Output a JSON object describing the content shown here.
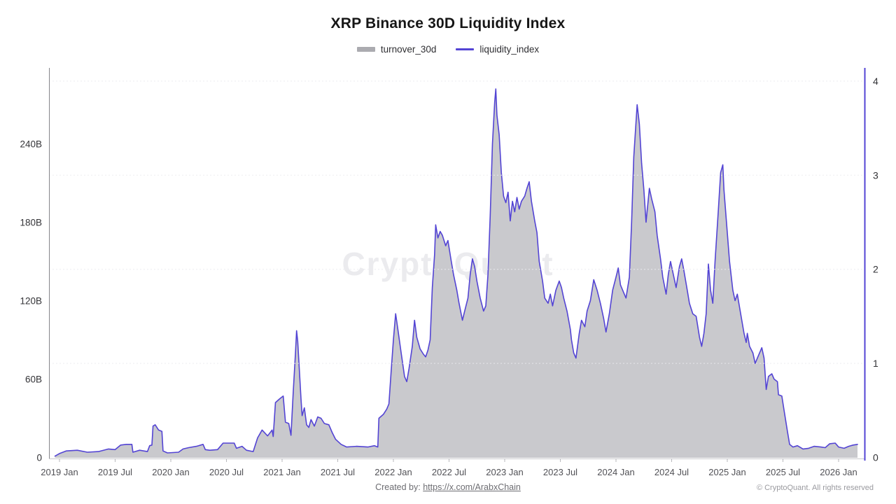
{
  "title": "XRP Binance 30D Liquidity Index",
  "watermark": "CryptoQuant",
  "legend": [
    {
      "label": "turnover_30d",
      "type": "area",
      "color": "#ababb0"
    },
    {
      "label": "liquidity_index",
      "type": "line",
      "color": "#5344d4"
    }
  ],
  "footer": {
    "created_by_label": "Created by:",
    "link": "https://x.com/ArabxChain",
    "copyright": "© CryptoQuant. All rights reserved"
  },
  "colors": {
    "area_fill": "#c9c9cd",
    "line": "#5344d4",
    "right_axis_line": "#5344d4",
    "left_axis_line": "#85858a",
    "bottom_axis_line": "#c9c9cd",
    "grid": "#ececef",
    "tick_text": "#333337",
    "x_label_text": "#515156"
  },
  "chart_data": {
    "type": "area",
    "title": "XRP Binance 30D Liquidity Index",
    "grid": "horizontal-dotted-at-right-axis-integers",
    "legend_position": "top-center",
    "x_axis": {
      "labels": [
        "2019 Jan",
        "2019 Jul",
        "2020 Jan",
        "2020 Jul",
        "2021 Jan",
        "2021 Jul",
        "2022 Jan",
        "2022 Jul",
        "2023 Jan",
        "2023 Jul",
        "2024 Jan",
        "2024 Jul",
        "2025 Jan",
        "2025 Jul",
        "2026 Jan"
      ],
      "start_year": 2019,
      "tick_interval_months": 6
    },
    "left_axis": {
      "unit": "B",
      "ticks": [
        "0",
        "60B",
        "120B",
        "180B",
        "240B"
      ],
      "tick_values": [
        0,
        60,
        120,
        180,
        240
      ],
      "range": [
        0,
        299
      ]
    },
    "right_axis": {
      "ticks": [
        "0",
        "1",
        "2",
        "3",
        "4"
      ],
      "tick_values": [
        0,
        1,
        2,
        3,
        4
      ],
      "range": [
        0,
        4.15
      ]
    },
    "series": [
      {
        "name": "turnover_30d",
        "axis": "left",
        "style": "area",
        "points": [
          [
            2018.96,
            1
          ],
          [
            2019.0,
            3
          ],
          [
            2019.06,
            5
          ],
          [
            2019.16,
            5.5
          ],
          [
            2019.25,
            4
          ],
          [
            2019.35,
            4.5
          ],
          [
            2019.44,
            6.5
          ],
          [
            2019.5,
            6
          ],
          [
            2019.55,
            9.5
          ],
          [
            2019.6,
            10
          ],
          [
            2019.65,
            10
          ],
          [
            2019.66,
            4
          ],
          [
            2019.72,
            5.5
          ],
          [
            2019.79,
            4.5
          ],
          [
            2019.81,
            9
          ],
          [
            2019.83,
            9.5
          ],
          [
            2019.84,
            24
          ],
          [
            2019.86,
            25
          ],
          [
            2019.89,
            21
          ],
          [
            2019.92,
            20
          ],
          [
            2019.93,
            5
          ],
          [
            2019.97,
            3.5
          ],
          [
            2020.07,
            4
          ],
          [
            2020.11,
            6.5
          ],
          [
            2020.16,
            7.5
          ],
          [
            2020.23,
            8.5
          ],
          [
            2020.29,
            10
          ],
          [
            2020.31,
            6
          ],
          [
            2020.35,
            5.5
          ],
          [
            2020.42,
            6
          ],
          [
            2020.47,
            11
          ],
          [
            2020.57,
            11
          ],
          [
            2020.59,
            7
          ],
          [
            2020.64,
            8.5
          ],
          [
            2020.68,
            5.5
          ],
          [
            2020.74,
            4.5
          ],
          [
            2020.78,
            15
          ],
          [
            2020.82,
            21
          ],
          [
            2020.87,
            16.5
          ],
          [
            2020.91,
            21
          ],
          [
            2020.92,
            16
          ],
          [
            2020.94,
            42
          ],
          [
            2020.98,
            45
          ],
          [
            2021.01,
            47
          ],
          [
            2021.03,
            27
          ],
          [
            2021.06,
            26
          ],
          [
            2021.08,
            17
          ],
          [
            2021.1,
            50
          ],
          [
            2021.12,
            80
          ],
          [
            2021.13,
            97
          ],
          [
            2021.14,
            89
          ],
          [
            2021.16,
            60
          ],
          [
            2021.17,
            45
          ],
          [
            2021.18,
            32
          ],
          [
            2021.2,
            38
          ],
          [
            2021.22,
            25
          ],
          [
            2021.24,
            23
          ],
          [
            2021.26,
            29
          ],
          [
            2021.29,
            24
          ],
          [
            2021.32,
            31
          ],
          [
            2021.35,
            30
          ],
          [
            2021.38,
            26
          ],
          [
            2021.42,
            25
          ],
          [
            2021.45,
            19
          ],
          [
            2021.48,
            14
          ],
          [
            2021.53,
            10
          ],
          [
            2021.58,
            8
          ],
          [
            2021.67,
            8.5
          ],
          [
            2021.77,
            8
          ],
          [
            2021.83,
            9
          ],
          [
            2021.86,
            8
          ],
          [
            2021.87,
            30
          ],
          [
            2021.91,
            33
          ],
          [
            2021.94,
            37
          ],
          [
            2021.96,
            41
          ],
          [
            2021.98,
            66
          ],
          [
            2022.0,
            90
          ],
          [
            2022.02,
            110
          ],
          [
            2022.04,
            98
          ],
          [
            2022.07,
            80
          ],
          [
            2022.1,
            62
          ],
          [
            2022.12,
            58
          ],
          [
            2022.14,
            68
          ],
          [
            2022.17,
            85
          ],
          [
            2022.19,
            105
          ],
          [
            2022.21,
            92
          ],
          [
            2022.24,
            83
          ],
          [
            2022.27,
            79
          ],
          [
            2022.29,
            77
          ],
          [
            2022.31,
            82
          ],
          [
            2022.33,
            90
          ],
          [
            2022.35,
            130
          ],
          [
            2022.37,
            155
          ],
          [
            2022.38,
            178
          ],
          [
            2022.4,
            168
          ],
          [
            2022.42,
            173
          ],
          [
            2022.44,
            170
          ],
          [
            2022.47,
            162
          ],
          [
            2022.49,
            166
          ],
          [
            2022.52,
            150
          ],
          [
            2022.54,
            140
          ],
          [
            2022.57,
            128
          ],
          [
            2022.59,
            118
          ],
          [
            2022.62,
            105
          ],
          [
            2022.64,
            112
          ],
          [
            2022.67,
            122
          ],
          [
            2022.69,
            140
          ],
          [
            2022.71,
            152
          ],
          [
            2022.73,
            146
          ],
          [
            2022.75,
            135
          ],
          [
            2022.78,
            122
          ],
          [
            2022.81,
            112
          ],
          [
            2022.83,
            116
          ],
          [
            2022.85,
            140
          ],
          [
            2022.87,
            185
          ],
          [
            2022.89,
            240
          ],
          [
            2022.91,
            272
          ],
          [
            2022.92,
            282
          ],
          [
            2022.93,
            262
          ],
          [
            2022.95,
            247
          ],
          [
            2022.97,
            218
          ],
          [
            2022.99,
            200
          ],
          [
            2023.01,
            195
          ],
          [
            2023.03,
            203
          ],
          [
            2023.05,
            181
          ],
          [
            2023.07,
            196
          ],
          [
            2023.09,
            188
          ],
          [
            2023.11,
            199
          ],
          [
            2023.13,
            190
          ],
          [
            2023.15,
            196
          ],
          [
            2023.18,
            200
          ],
          [
            2023.2,
            206
          ],
          [
            2023.22,
            211
          ],
          [
            2023.24,
            196
          ],
          [
            2023.27,
            181
          ],
          [
            2023.29,
            172
          ],
          [
            2023.31,
            150
          ],
          [
            2023.34,
            135
          ],
          [
            2023.36,
            122
          ],
          [
            2023.39,
            118
          ],
          [
            2023.41,
            125
          ],
          [
            2023.43,
            116
          ],
          [
            2023.46,
            128
          ],
          [
            2023.49,
            135
          ],
          [
            2023.51,
            130
          ],
          [
            2023.53,
            122
          ],
          [
            2023.56,
            112
          ],
          [
            2023.59,
            98
          ],
          [
            2023.6,
            90
          ],
          [
            2023.62,
            80
          ],
          [
            2023.64,
            76
          ],
          [
            2023.67,
            95
          ],
          [
            2023.69,
            105
          ],
          [
            2023.72,
            100
          ],
          [
            2023.74,
            112
          ],
          [
            2023.77,
            120
          ],
          [
            2023.8,
            136
          ],
          [
            2023.83,
            128
          ],
          [
            2023.86,
            118
          ],
          [
            2023.89,
            106
          ],
          [
            2023.91,
            96
          ],
          [
            2023.94,
            110
          ],
          [
            2023.97,
            128
          ],
          [
            2024.0,
            138
          ],
          [
            2024.02,
            145
          ],
          [
            2024.04,
            132
          ],
          [
            2024.07,
            126
          ],
          [
            2024.09,
            122
          ],
          [
            2024.12,
            138
          ],
          [
            2024.14,
            180
          ],
          [
            2024.16,
            230
          ],
          [
            2024.19,
            270
          ],
          [
            2024.21,
            255
          ],
          [
            2024.23,
            225
          ],
          [
            2024.25,
            205
          ],
          [
            2024.27,
            180
          ],
          [
            2024.3,
            206
          ],
          [
            2024.32,
            198
          ],
          [
            2024.35,
            188
          ],
          [
            2024.37,
            170
          ],
          [
            2024.4,
            152
          ],
          [
            2024.42,
            138
          ],
          [
            2024.45,
            125
          ],
          [
            2024.47,
            140
          ],
          [
            2024.49,
            150
          ],
          [
            2024.52,
            138
          ],
          [
            2024.54,
            130
          ],
          [
            2024.57,
            146
          ],
          [
            2024.59,
            152
          ],
          [
            2024.61,
            143
          ],
          [
            2024.64,
            128
          ],
          [
            2024.66,
            118
          ],
          [
            2024.69,
            110
          ],
          [
            2024.72,
            108
          ],
          [
            2024.75,
            92
          ],
          [
            2024.77,
            85
          ],
          [
            2024.79,
            95
          ],
          [
            2024.81,
            110
          ],
          [
            2024.83,
            148
          ],
          [
            2024.85,
            128
          ],
          [
            2024.87,
            118
          ],
          [
            2024.89,
            150
          ],
          [
            2024.92,
            190
          ],
          [
            2024.94,
            218
          ],
          [
            2024.96,
            224
          ],
          [
            2024.97,
            205
          ],
          [
            2024.99,
            183
          ],
          [
            2025.02,
            150
          ],
          [
            2025.05,
            128
          ],
          [
            2025.07,
            120
          ],
          [
            2025.09,
            125
          ],
          [
            2025.12,
            110
          ],
          [
            2025.15,
            95
          ],
          [
            2025.17,
            88
          ],
          [
            2025.18,
            95
          ],
          [
            2025.2,
            85
          ],
          [
            2025.23,
            80
          ],
          [
            2025.25,
            72
          ],
          [
            2025.28,
            78
          ],
          [
            2025.31,
            84
          ],
          [
            2025.33,
            76
          ],
          [
            2025.35,
            52
          ],
          [
            2025.37,
            62
          ],
          [
            2025.4,
            64
          ],
          [
            2025.42,
            60
          ],
          [
            2025.45,
            58
          ],
          [
            2025.46,
            48
          ],
          [
            2025.49,
            47
          ],
          [
            2025.51,
            36
          ],
          [
            2025.54,
            20
          ],
          [
            2025.56,
            10
          ],
          [
            2025.59,
            8
          ],
          [
            2025.63,
            9
          ],
          [
            2025.68,
            6.5
          ],
          [
            2025.73,
            7
          ],
          [
            2025.78,
            8.5
          ],
          [
            2025.84,
            8
          ],
          [
            2025.88,
            7.5
          ],
          [
            2025.92,
            10.5
          ],
          [
            2025.97,
            11
          ],
          [
            2026.0,
            8
          ],
          [
            2026.05,
            7
          ],
          [
            2026.09,
            8.5
          ],
          [
            2026.13,
            9.5
          ],
          [
            2026.17,
            10
          ]
        ]
      },
      {
        "name": "liquidity_index",
        "axis": "right",
        "style": "line",
        "derived_from": "turnover_30d",
        "right_axis_divisor": 72
      }
    ]
  }
}
